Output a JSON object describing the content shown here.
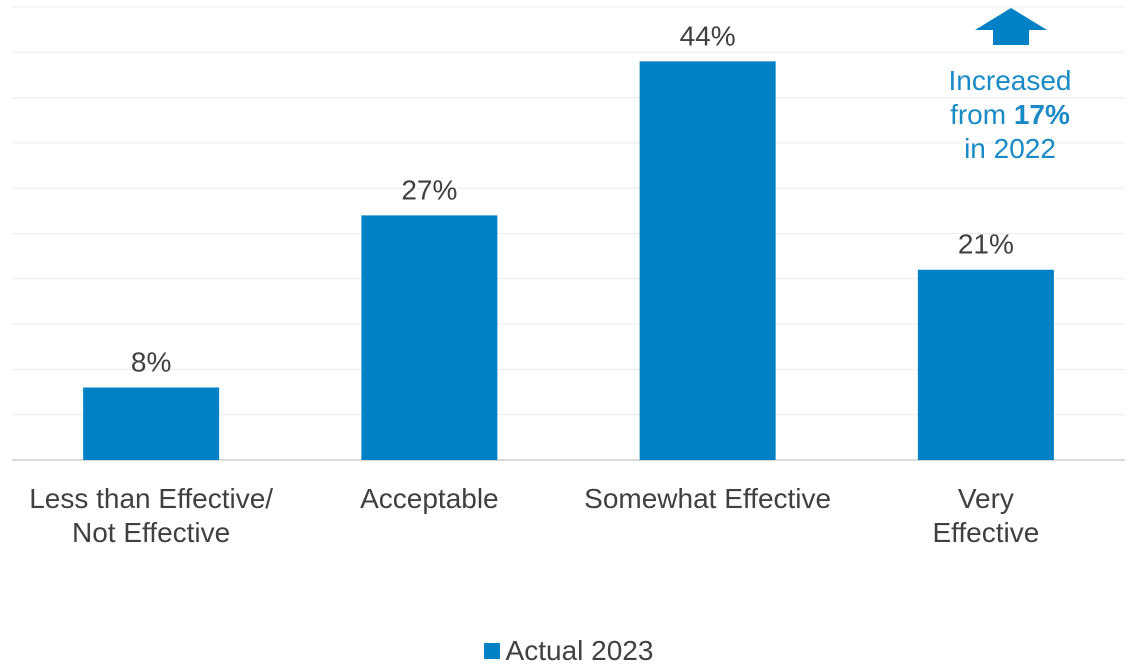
{
  "chart_data": {
    "type": "bar",
    "categories": [
      "Less than Effective/\nNot Effective",
      "Acceptable",
      "Somewhat Effective",
      "Very\nEffective"
    ],
    "series": [
      {
        "name": "Actual 2023",
        "values": [
          8,
          27,
          44,
          21
        ],
        "color": "#0081c6"
      }
    ],
    "data_labels": [
      "8%",
      "27%",
      "44%",
      "21%"
    ],
    "ylim": [
      0,
      50
    ],
    "grid": true,
    "legend_position": "bottom-center",
    "annotation": {
      "line1": "Increased",
      "line2_prefix": "from ",
      "line2_bold": "17%",
      "line3": "in 2022",
      "color": "#1a8ac6",
      "arrow": "up-arrow-icon"
    }
  }
}
